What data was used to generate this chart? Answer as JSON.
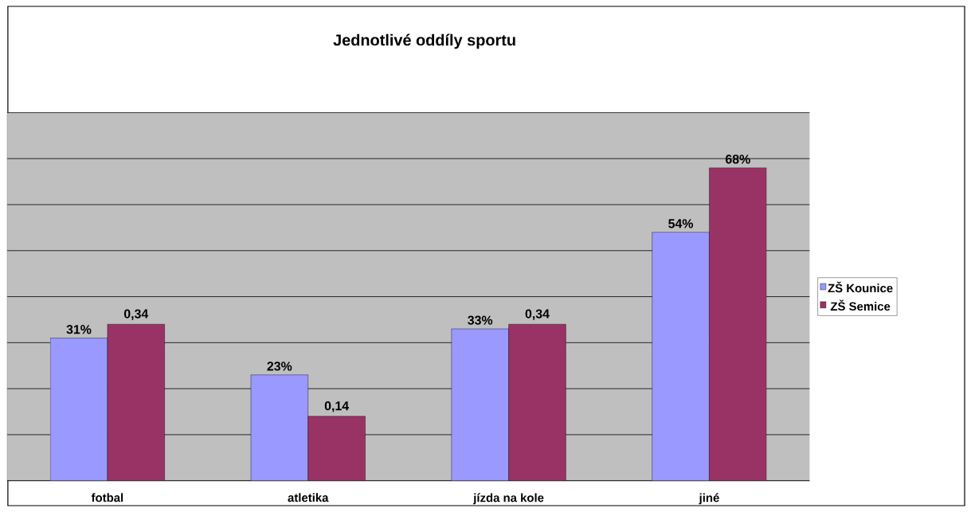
{
  "chart_data": {
    "type": "bar",
    "title": "Jednotlivé oddíly sportu",
    "categories": [
      "fotbal",
      "atletika",
      "jízda na kole",
      "jiné"
    ],
    "series": [
      {
        "name": "ZŠ Kounice",
        "color": "#9999ff",
        "values": [
          0.31,
          0.23,
          0.33,
          0.54
        ],
        "value_labels": [
          "31%",
          "23%",
          "33%",
          "54%"
        ]
      },
      {
        "name": "ZŠ Semice",
        "color": "#993366",
        "values": [
          0.34,
          0.14,
          0.34,
          0.68
        ],
        "value_labels": [
          "0,34",
          "0,14",
          "0,34",
          "68%"
        ]
      }
    ],
    "ylim": [
      0,
      0.8
    ],
    "yticks": [
      {
        "value": 0,
        "label": null
      },
      {
        "value": 0.1,
        "label": null
      },
      {
        "value": 0.2,
        "label": null
      },
      {
        "value": 0.3,
        "label": null
      },
      {
        "value": 0.4,
        "label": null
      },
      {
        "value": 0.5,
        "label": null
      },
      {
        "value": 0.6,
        "label": null
      },
      {
        "value": 0.7,
        "label": null
      },
      {
        "value": 0.8,
        "label": null
      }
    ],
    "grid": "y",
    "legend": "right",
    "tick_labels": "x"
  }
}
